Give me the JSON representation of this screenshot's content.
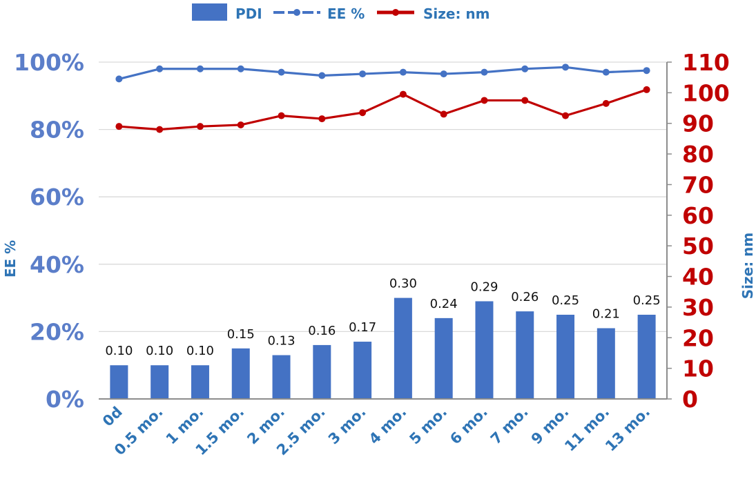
{
  "chart_data": {
    "type": "bar",
    "categories": [
      "0d",
      "0.5 mo.",
      "1 mo.",
      "1.5 mo.",
      "2 mo.",
      "2.5 mo.",
      "3 mo.",
      "4 mo.",
      "5 mo.",
      "6 mo.",
      "7 mo.",
      "9 mo.",
      "11 mo.",
      "13 mo."
    ],
    "legend": {
      "position": "top",
      "entries": [
        {
          "name": "PDI",
          "marker": "bar",
          "color": "#4472c4"
        },
        {
          "name": "EE %",
          "marker": "line-dot",
          "color": "#4472c4"
        },
        {
          "name": "Size: nm",
          "marker": "line-dot",
          "color": "#c00000"
        }
      ]
    },
    "pdi": {
      "name": "PDI",
      "axis": "left (bar height on a 0-1 scale of the 0%-100% axis)",
      "values": [
        0.1,
        0.1,
        0.1,
        0.15,
        0.13,
        0.16,
        0.17,
        0.3,
        0.24,
        0.29,
        0.26,
        0.25,
        0.21,
        0.25
      ],
      "labels": [
        "0.10",
        "0.10",
        "0.10",
        "0.15",
        "0.13",
        "0.16",
        "0.17",
        "0.30",
        "0.24",
        "0.29",
        "0.26",
        "0.25",
        "0.21",
        "0.25"
      ],
      "color": "#4472c4"
    },
    "series": [
      {
        "name": "EE %",
        "axis": "left",
        "type": "line",
        "color": "#4472c4",
        "values": [
          95,
          98,
          98,
          98,
          97,
          96,
          96.5,
          97,
          96.5,
          97,
          98,
          98.5,
          97,
          97.5
        ]
      },
      {
        "name": "Size: nm",
        "axis": "right",
        "type": "line",
        "color": "#c00000",
        "values": [
          89,
          88,
          89,
          89.5,
          92.5,
          91.5,
          93.5,
          99.5,
          93,
          97.5,
          97.5,
          92.5,
          96.5,
          101
        ]
      }
    ],
    "y_left": {
      "label": "EE %",
      "range": [
        0,
        100
      ],
      "ticks": [
        "0%",
        "20%",
        "40%",
        "60%",
        "80%",
        "100%"
      ],
      "color": "#5b7ec9"
    },
    "y_right": {
      "label": "Size: nm",
      "range": [
        0,
        110
      ],
      "ticks": [
        "0",
        "10",
        "20",
        "30",
        "40",
        "50",
        "60",
        "70",
        "80",
        "90",
        "100",
        "110"
      ],
      "color": "#c00000"
    },
    "grid": true
  }
}
